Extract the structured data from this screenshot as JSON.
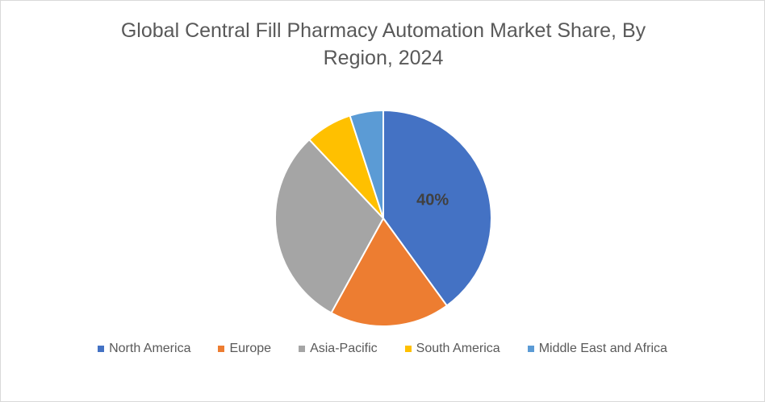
{
  "chart_data": {
    "type": "pie",
    "title": "Global Central Fill Pharmacy Automation Market Share, By Region, 2024",
    "categories": [
      "North America",
      "Europe",
      "Asia-Pacific",
      "South America",
      "Middle East and Africa"
    ],
    "values": [
      40,
      18,
      30,
      7,
      5
    ],
    "value_labels": [
      "40%",
      null,
      null,
      null,
      null
    ],
    "colors": [
      "#4472c4",
      "#ed7d31",
      "#a5a5a5",
      "#ffc000",
      "#5b9bd5"
    ],
    "legend": "bottom"
  }
}
